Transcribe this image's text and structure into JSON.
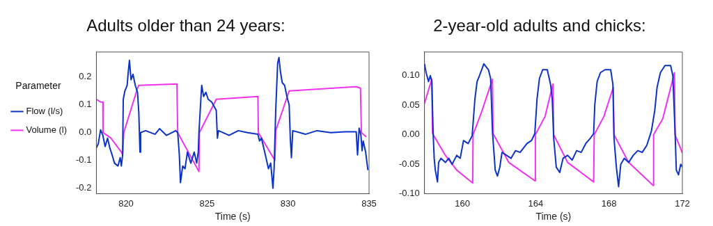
{
  "chart_data": [
    {
      "type": "line",
      "title": "Adults older than 24 years:",
      "xlabel": "Time (s)",
      "xlim": [
        818.17,
        835
      ],
      "xticks": [
        820,
        825,
        830,
        835
      ],
      "ylim": [
        -0.22,
        0.29
      ],
      "yticks": [
        -0.2,
        -0.1,
        {
          "value": 0,
          "label": "0.0"
        },
        0.1,
        0.2
      ],
      "legend": "left",
      "legend_title": "Parameter",
      "grid": false,
      "marker": "none",
      "line_style": "solid",
      "series": [
        {
          "name": "Flow (l/s)",
          "color": "#0a32c8",
          "x": [
            818.17,
            818.29,
            818.43,
            818.57,
            818.71,
            818.86,
            819.0,
            819.14,
            819.29,
            819.5,
            819.64,
            819.71,
            819.79,
            819.83,
            819.93,
            820.07,
            820.14,
            820.21,
            820.31,
            820.43,
            820.57,
            820.71,
            820.79,
            820.86,
            820.9,
            821.21,
            821.79,
            822.07,
            822.5,
            823.07,
            823.19,
            823.29,
            823.36,
            823.5,
            823.64,
            823.79,
            824.0,
            824.21,
            824.36,
            824.46,
            824.5,
            824.6,
            824.67,
            824.79,
            824.93,
            825.07,
            825.29,
            825.43,
            825.57,
            825.64,
            825.71,
            826.36,
            826.93,
            827.5,
            828.14,
            828.24,
            828.36,
            828.5,
            828.64,
            828.79,
            828.93,
            829.07,
            829.14,
            829.24,
            829.36,
            829.44,
            829.53,
            829.64,
            829.79,
            829.93,
            830.07,
            830.14,
            830.21,
            830.29,
            831.07,
            831.79,
            832.64,
            833.5,
            834.21,
            834.29,
            834.39,
            834.5,
            834.57,
            834.64,
            834.79,
            834.93
          ],
          "values": [
            -0.055,
            -0.04,
            0.01,
            -0.01,
            -0.05,
            -0.02,
            -0.055,
            -0.08,
            -0.11,
            -0.12,
            -0.09,
            -0.12,
            -0.08,
            0.12,
            0.15,
            0.17,
            0.22,
            0.26,
            0.19,
            0.21,
            0.17,
            0.145,
            0.07,
            -0.07,
            0.0,
            0.007,
            -0.006,
            0.014,
            -0.01,
            0.007,
            0.0,
            -0.08,
            -0.18,
            -0.12,
            -0.13,
            -0.07,
            -0.11,
            -0.07,
            -0.11,
            -0.07,
            0.0,
            0.1,
            0.17,
            0.13,
            0.145,
            0.12,
            0.11,
            0.095,
            0.08,
            -0.02,
            0.007,
            -0.01,
            0.007,
            0.0,
            -0.006,
            -0.03,
            -0.02,
            -0.055,
            -0.09,
            -0.13,
            -0.11,
            -0.2,
            -0.13,
            0.08,
            0.25,
            0.27,
            0.22,
            0.18,
            0.17,
            0.13,
            0.1,
            -0.02,
            -0.09,
            0.007,
            -0.006,
            0.007,
            0.0,
            0.003,
            0.003,
            -0.08,
            0.016,
            -0.01,
            -0.065,
            -0.03,
            -0.07,
            -0.135
          ]
        },
        {
          "name": "Volume (l)",
          "color": "#f032f0",
          "x": [
            818.17,
            818.43,
            818.57,
            818.58,
            819.07,
            819.71,
            819.79,
            819.86,
            820.71,
            820.79,
            823.14,
            823.19,
            824.5,
            824.53,
            825.57,
            828.14,
            828.17,
            829.19,
            829.24,
            830.07,
            834.21,
            834.47,
            834.53,
            834.83
          ],
          "values": [
            0.12,
            0.11,
            0.11,
            0.0,
            -0.02,
            -0.07,
            -0.08,
            0.0,
            0.16,
            0.17,
            0.175,
            0.0,
            -0.14,
            0.0,
            0.12,
            0.13,
            0.0,
            -0.1,
            0.007,
            0.15,
            0.165,
            0.16,
            0.0,
            -0.015
          ]
        }
      ]
    },
    {
      "type": "line",
      "title": "2-year-old adults and chicks:",
      "xlabel": "Time (s)",
      "xlim": [
        157.93,
        172
      ],
      "xticks": [
        160,
        164,
        168,
        172
      ],
      "ylim": [
        -0.1,
        0.14
      ],
      "yticks": [
        {
          "value": -0.1,
          "label": "-0.10"
        },
        {
          "value": -0.05,
          "label": "-0.05"
        },
        {
          "value": 0,
          "label": "0.00"
        },
        {
          "value": 0.05,
          "label": "0.05"
        },
        {
          "value": 0.1,
          "label": "0.10"
        }
      ],
      "legend": false,
      "grid": false,
      "marker": "none",
      "line_style": "solid",
      "series": [
        {
          "color": "#0a32c8",
          "x": [
            157.93,
            158.02,
            158.15,
            158.25,
            158.33,
            158.4,
            158.46,
            158.52,
            158.58,
            158.64,
            158.7,
            158.83,
            159.07,
            159.26,
            159.44,
            159.69,
            159.88,
            160.06,
            160.31,
            160.53,
            160.58,
            160.68,
            160.8,
            160.93,
            161.17,
            161.42,
            161.54,
            161.64,
            161.79,
            161.91,
            162.04,
            162.16,
            162.41,
            162.65,
            162.9,
            163.15,
            163.52,
            163.77,
            163.95,
            164.07,
            164.2,
            164.38,
            164.63,
            164.81,
            164.9,
            164.98,
            165.12,
            165.31,
            165.49,
            165.74,
            165.99,
            166.23,
            166.48,
            166.73,
            166.98,
            167.16,
            167.22,
            167.35,
            167.53,
            167.78,
            168.09,
            168.21,
            168.27,
            168.4,
            168.52,
            168.64,
            168.83,
            169.07,
            169.32,
            169.57,
            169.81,
            170.06,
            170.31,
            170.49,
            170.62,
            170.8,
            171.05,
            171.36,
            171.48,
            171.6,
            171.67,
            171.79,
            171.91,
            172.0
          ],
          "values": [
            0.12,
            0.105,
            0.09,
            0.1,
            0.09,
            0.005,
            -0.04,
            -0.06,
            -0.07,
            -0.08,
            -0.047,
            -0.04,
            -0.047,
            -0.04,
            -0.05,
            -0.035,
            -0.04,
            -0.01,
            -0.015,
            -0.002,
            0.018,
            0.06,
            0.09,
            0.1,
            0.12,
            0.11,
            0.095,
            0.005,
            -0.06,
            -0.07,
            -0.055,
            -0.03,
            -0.035,
            -0.04,
            -0.027,
            -0.03,
            -0.015,
            -0.01,
            0.002,
            0.06,
            0.095,
            0.11,
            0.11,
            0.085,
            0.06,
            -0.006,
            -0.055,
            -0.064,
            -0.04,
            -0.035,
            -0.043,
            -0.027,
            -0.03,
            -0.015,
            -0.006,
            0.002,
            0.05,
            0.09,
            0.105,
            0.11,
            0.11,
            0.085,
            -0.006,
            -0.055,
            -0.088,
            -0.05,
            -0.04,
            -0.047,
            -0.035,
            -0.027,
            -0.03,
            -0.018,
            0.006,
            0.04,
            0.08,
            0.105,
            0.117,
            0.117,
            0.1,
            0.006,
            -0.06,
            -0.068,
            -0.05,
            -0.055
          ]
        },
        {
          "color": "#f032f0",
          "x": [
            157.93,
            158.33,
            158.37,
            159.07,
            159.69,
            160.56,
            160.58,
            161.05,
            161.64,
            161.67,
            162.53,
            163.95,
            163.98,
            164.51,
            164.94,
            164.98,
            165.74,
            167.16,
            167.19,
            167.72,
            168.23,
            168.27,
            169.07,
            170.41,
            170.43,
            170.93,
            171.57,
            171.6,
            172.0
          ],
          "values": [
            0.053,
            0.094,
            0.002,
            -0.035,
            -0.06,
            -0.082,
            0.0,
            0.039,
            0.094,
            0.002,
            -0.047,
            -0.078,
            0.0,
            0.031,
            0.086,
            0.0,
            -0.047,
            -0.08,
            0.0,
            0.031,
            0.08,
            0.0,
            -0.047,
            -0.086,
            0.0,
            0.027,
            0.105,
            0.0,
            -0.031
          ]
        }
      ]
    }
  ]
}
